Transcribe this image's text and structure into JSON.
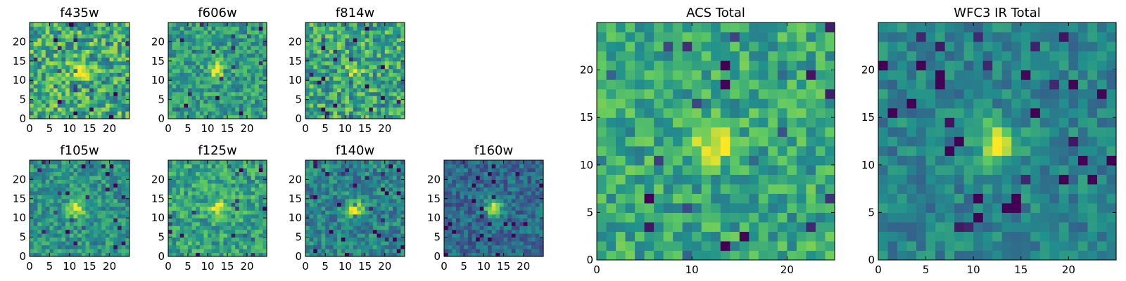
{
  "figure": {
    "colormap": "viridis",
    "colormap_stops": [
      "#440154",
      "#3b528b",
      "#21918c",
      "#5ec962",
      "#fde725"
    ]
  },
  "chart_data": [
    {
      "type": "heatmap",
      "title": "f435w",
      "grid": false,
      "xlim": [
        0,
        25
      ],
      "ylim": [
        0,
        25
      ],
      "xticks": [
        0,
        5,
        10,
        15,
        20
      ],
      "yticks": [
        0,
        5,
        10,
        15,
        20
      ],
      "source_center": [
        12,
        12
      ],
      "source_peak": 0.35,
      "background_level": 0.62,
      "noise_level": 0.28
    },
    {
      "type": "heatmap",
      "title": "f606w",
      "grid": false,
      "xlim": [
        0,
        25
      ],
      "ylim": [
        0,
        25
      ],
      "xticks": [
        0,
        5,
        10,
        15,
        20
      ],
      "yticks": [
        0,
        5,
        10,
        15,
        20
      ],
      "source_center": [
        12,
        12
      ],
      "source_peak": 0.45,
      "background_level": 0.55,
      "noise_level": 0.2
    },
    {
      "type": "heatmap",
      "title": "f814w",
      "grid": false,
      "xlim": [
        0,
        25
      ],
      "ylim": [
        0,
        25
      ],
      "xticks": [
        0,
        5,
        10,
        15,
        20
      ],
      "yticks": [
        0,
        5,
        10,
        15,
        20
      ],
      "source_center": [
        12,
        12
      ],
      "source_peak": 0.3,
      "background_level": 0.6,
      "noise_level": 0.26
    },
    {
      "type": "heatmap",
      "title": "f105w",
      "grid": false,
      "xlim": [
        0,
        25
      ],
      "ylim": [
        0,
        25
      ],
      "xticks": [
        0,
        5,
        10,
        15,
        20
      ],
      "yticks": [
        0,
        5,
        10,
        15,
        20
      ],
      "source_center": [
        11,
        12
      ],
      "source_peak": 0.45,
      "background_level": 0.52,
      "noise_level": 0.18
    },
    {
      "type": "heatmap",
      "title": "f125w",
      "grid": false,
      "xlim": [
        0,
        25
      ],
      "ylim": [
        0,
        25
      ],
      "xticks": [
        0,
        5,
        10,
        15,
        20
      ],
      "yticks": [
        0,
        5,
        10,
        15,
        20
      ],
      "source_center": [
        12,
        12
      ],
      "source_peak": 0.35,
      "background_level": 0.58,
      "noise_level": 0.2
    },
    {
      "type": "heatmap",
      "title": "f140w",
      "grid": false,
      "xlim": [
        0,
        25
      ],
      "ylim": [
        0,
        25
      ],
      "xticks": [
        0,
        5,
        10,
        15,
        20
      ],
      "yticks": [
        0,
        5,
        10,
        15,
        20
      ],
      "source_center": [
        12,
        12
      ],
      "source_peak": 0.5,
      "background_level": 0.45,
      "noise_level": 0.18
    },
    {
      "type": "heatmap",
      "title": "f160w",
      "grid": false,
      "xlim": [
        0,
        25
      ],
      "ylim": [
        0,
        25
      ],
      "xticks": [
        0,
        5,
        10,
        15,
        20
      ],
      "yticks": [
        0,
        5,
        10,
        15,
        20
      ],
      "source_center": [
        12,
        12
      ],
      "source_peak": 0.6,
      "background_level": 0.35,
      "noise_level": 0.16
    },
    {
      "type": "heatmap",
      "title": "ACS Total",
      "grid": false,
      "xlim": [
        0,
        25
      ],
      "ylim": [
        0,
        25
      ],
      "xticks": [
        0,
        10,
        20
      ],
      "yticks": [
        0,
        5,
        10,
        15,
        20
      ],
      "source_center": [
        12,
        12
      ],
      "source_peak": 0.4,
      "background_level": 0.6,
      "noise_level": 0.2
    },
    {
      "type": "heatmap",
      "title": "WFC3 IR Total",
      "grid": false,
      "xlim": [
        0,
        25
      ],
      "ylim": [
        0,
        25
      ],
      "xticks": [
        0,
        5,
        10,
        15,
        20
      ],
      "yticks": [
        0,
        5,
        10,
        15,
        20
      ],
      "source_center": [
        12,
        12
      ],
      "source_peak": 0.55,
      "background_level": 0.45,
      "noise_level": 0.14
    }
  ]
}
